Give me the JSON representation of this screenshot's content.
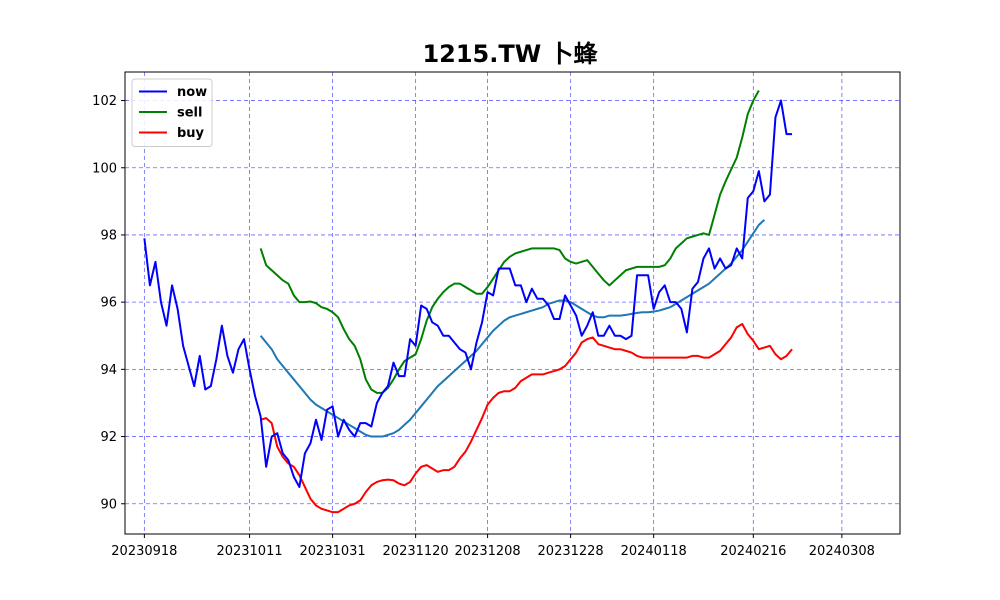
{
  "chart_data": {
    "type": "line",
    "title": "1215.TW 卜蜂",
    "xlabel": "",
    "ylabel": "",
    "x_tick_labels": [
      "20230918",
      "20231011",
      "20231031",
      "20231120",
      "20231208",
      "20231228",
      "20240118",
      "20240216",
      "20240308"
    ],
    "x_tick_positions": [
      0,
      19,
      34,
      49,
      62,
      77,
      92,
      110,
      126
    ],
    "xlim": [
      -3.5,
      136.5
    ],
    "ylim": [
      89.1,
      102.85
    ],
    "y_ticks": [
      90,
      92,
      94,
      96,
      98,
      100,
      102
    ],
    "grid": true,
    "legend_position": "top-left",
    "colors": {
      "now": "#0000ff",
      "sell": "#008000",
      "buy": "#ff0000",
      "ma": "#1f77b4",
      "grid": "#0000ff"
    },
    "series": [
      {
        "name": "now",
        "key": "now",
        "start_index": 0,
        "values": [
          97.9,
          96.5,
          97.2,
          96.0,
          95.3,
          96.5,
          95.8,
          94.7,
          94.1,
          93.5,
          94.4,
          93.4,
          93.5,
          94.3,
          95.3,
          94.4,
          93.9,
          94.6,
          94.9,
          94.0,
          93.2,
          92.6,
          91.1,
          92.0,
          92.1,
          91.5,
          91.3,
          90.8,
          90.5,
          91.5,
          91.8,
          92.5,
          91.9,
          92.8,
          92.9,
          92.0,
          92.5,
          92.2,
          92.0,
          92.4,
          92.4,
          92.3,
          93.0,
          93.3,
          93.5,
          94.2,
          93.8,
          93.8,
          94.9,
          94.7,
          95.9,
          95.8,
          95.4,
          95.3,
          95.0,
          95.0,
          94.8,
          94.6,
          94.5,
          94.0,
          94.8,
          95.4,
          96.3,
          96.2,
          97.0,
          97.0,
          97.0,
          96.5,
          96.5,
          96.0,
          96.4,
          96.1,
          96.1,
          95.9,
          95.5,
          95.5,
          96.2,
          95.9,
          95.6,
          95.0,
          95.3,
          95.7,
          95.0,
          95.0,
          95.3,
          95.0,
          95.0,
          94.9,
          95.0,
          96.8,
          96.8,
          96.8,
          95.8,
          96.3,
          96.5,
          96.0,
          96.0,
          95.8,
          95.1,
          96.4,
          96.6,
          97.3,
          97.6,
          97.0,
          97.3,
          97.0,
          97.1,
          97.6,
          97.3,
          99.1,
          99.3,
          99.9,
          99.0,
          99.2,
          101.5,
          102.0,
          101.0,
          101.0
        ]
      },
      {
        "name": "sell",
        "key": "sell",
        "start_index": 21,
        "values": [
          97.6,
          97.1,
          96.95,
          96.8,
          96.65,
          96.55,
          96.2,
          96.0,
          96.0,
          96.02,
          95.97,
          95.85,
          95.8,
          95.7,
          95.55,
          95.2,
          94.9,
          94.7,
          94.3,
          93.7,
          93.4,
          93.3,
          93.3,
          93.45,
          93.7,
          94.0,
          94.25,
          94.35,
          94.45,
          94.9,
          95.45,
          95.85,
          96.1,
          96.3,
          96.45,
          96.55,
          96.55,
          96.45,
          96.35,
          96.25,
          96.25,
          96.45,
          96.7,
          96.95,
          97.2,
          97.35,
          97.45,
          97.5,
          97.55,
          97.6,
          97.6,
          97.6,
          97.6,
          97.6,
          97.55,
          97.3,
          97.2,
          97.15,
          97.2,
          97.25,
          97.05,
          96.85,
          96.65,
          96.5,
          96.65,
          96.8,
          96.95,
          97.0,
          97.05,
          97.05,
          97.05,
          97.05,
          97.05,
          97.1,
          97.3,
          97.6,
          97.75,
          97.9,
          97.95,
          98.0,
          98.05,
          98.0,
          98.6,
          99.2,
          99.6,
          99.95,
          100.3,
          100.9,
          101.6,
          102.0,
          102.3
        ]
      },
      {
        "name": "buy",
        "key": "buy",
        "start_index": 21,
        "values": [
          92.5,
          92.55,
          92.4,
          91.7,
          91.4,
          91.2,
          91.1,
          90.85,
          90.5,
          90.15,
          89.95,
          89.85,
          89.8,
          89.75,
          89.75,
          89.85,
          89.95,
          90.0,
          90.1,
          90.35,
          90.55,
          90.65,
          90.7,
          90.72,
          90.7,
          90.6,
          90.55,
          90.65,
          90.9,
          91.1,
          91.15,
          91.05,
          90.95,
          91.0,
          91.0,
          91.1,
          91.35,
          91.55,
          91.85,
          92.2,
          92.55,
          92.95,
          93.15,
          93.3,
          93.35,
          93.35,
          93.45,
          93.65,
          93.75,
          93.85,
          93.85,
          93.85,
          93.9,
          93.95,
          94.0,
          94.1,
          94.3,
          94.5,
          94.8,
          94.9,
          94.95,
          94.75,
          94.7,
          94.65,
          94.6,
          94.6,
          94.55,
          94.5,
          94.4,
          94.35,
          94.35,
          94.35,
          94.35,
          94.35,
          94.35,
          94.35,
          94.35,
          94.35,
          94.4,
          94.4,
          94.35,
          94.35,
          94.45,
          94.55,
          94.75,
          94.95,
          95.25,
          95.35,
          95.05,
          94.85,
          94.6,
          94.65,
          94.7,
          94.45,
          94.3,
          94.4,
          94.6
        ]
      },
      {
        "name": "",
        "key": "ma",
        "start_index": 21,
        "values": [
          95.0,
          94.8,
          94.6,
          94.3,
          94.1,
          93.9,
          93.7,
          93.5,
          93.3,
          93.1,
          92.95,
          92.85,
          92.75,
          92.65,
          92.55,
          92.45,
          92.35,
          92.25,
          92.15,
          92.05,
          92.0,
          92.0,
          92.0,
          92.05,
          92.1,
          92.2,
          92.35,
          92.5,
          92.7,
          92.9,
          93.1,
          93.3,
          93.5,
          93.65,
          93.8,
          93.95,
          94.1,
          94.25,
          94.4,
          94.55,
          94.75,
          94.95,
          95.15,
          95.3,
          95.45,
          95.55,
          95.6,
          95.65,
          95.7,
          95.75,
          95.8,
          95.85,
          95.95,
          96.0,
          96.05,
          96.05,
          96.0,
          95.9,
          95.8,
          95.7,
          95.6,
          95.55,
          95.55,
          95.6,
          95.6,
          95.6,
          95.62,
          95.65,
          95.68,
          95.7,
          95.7,
          95.72,
          95.75,
          95.8,
          95.85,
          95.95,
          96.05,
          96.15,
          96.25,
          96.35,
          96.45,
          96.55,
          96.7,
          96.85,
          97.0,
          97.15,
          97.35,
          97.55,
          97.8,
          98.05,
          98.3,
          98.45
        ]
      }
    ]
  }
}
